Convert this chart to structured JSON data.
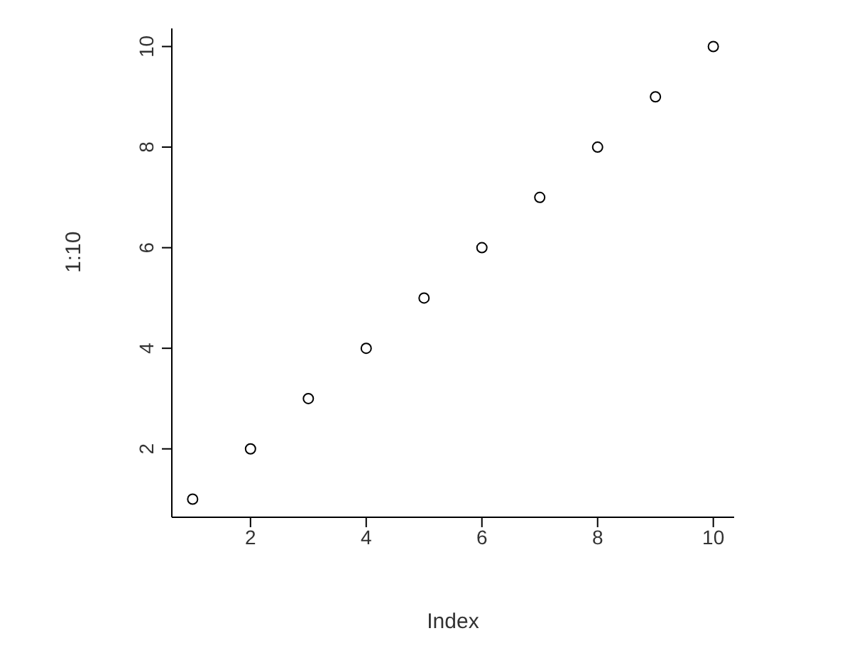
{
  "chart_data": {
    "type": "scatter",
    "xlabel": "Index",
    "ylabel": "1:10",
    "x": [
      1,
      2,
      3,
      4,
      5,
      6,
      7,
      8,
      9,
      10
    ],
    "values": [
      1,
      2,
      3,
      4,
      5,
      6,
      7,
      8,
      9,
      10
    ],
    "color": "#000000",
    "marker": "circle",
    "grid": false,
    "legend": false,
    "xlim": [
      0.64,
      10.36
    ],
    "ylim": [
      0.64,
      10.36
    ],
    "xticks": [
      2,
      4,
      6,
      8,
      10
    ],
    "yticks": [
      2,
      4,
      6,
      8,
      10
    ]
  }
}
